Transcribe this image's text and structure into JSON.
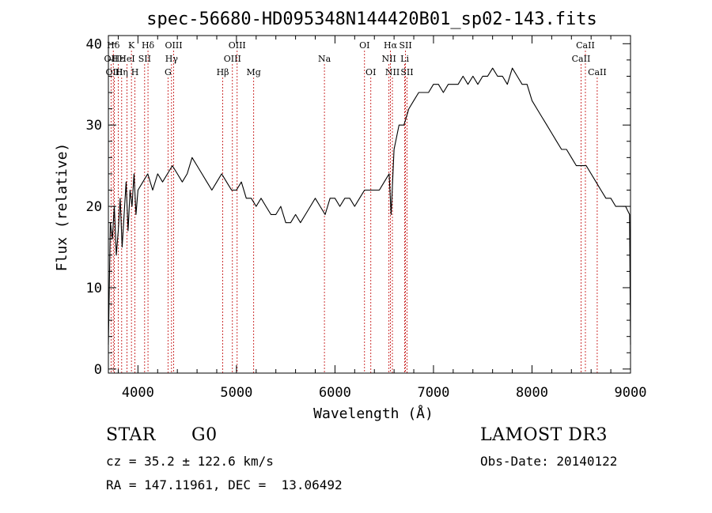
{
  "chart_data": {
    "type": "line",
    "title": "spec-56680-HD095348N144420B01_sp02-143.fits",
    "xlabel": "Wavelength (Å)",
    "ylabel": "Flux (relative)",
    "xlim": [
      3700,
      9000
    ],
    "ylim": [
      -0.5,
      41
    ],
    "xticks": [
      4000,
      5000,
      6000,
      7000,
      8000,
      9000
    ],
    "yticks": [
      0,
      10,
      20,
      30,
      40
    ],
    "grid": false,
    "line_color": "#000000",
    "marker_color": "#c00000",
    "series": [
      {
        "x": [
          3700,
          3720,
          3740,
          3760,
          3780,
          3800,
          3820,
          3840,
          3860,
          3880,
          3900,
          3920,
          3940,
          3960,
          3980,
          4000,
          4050,
          4100,
          4150,
          4200,
          4250,
          4300,
          4350,
          4400,
          4450,
          4500,
          4550,
          4600,
          4650,
          4700,
          4750,
          4800,
          4850,
          4900,
          4950,
          5000,
          5050,
          5100,
          5150,
          5200,
          5250,
          5300,
          5350,
          5400,
          5450,
          5500,
          5550,
          5600,
          5650,
          5700,
          5750,
          5800,
          5850,
          5900,
          5950,
          6000,
          6050,
          6100,
          6150,
          6200,
          6250,
          6300,
          6350,
          6400,
          6450,
          6500,
          6550,
          6570,
          6600,
          6650,
          6700,
          6750,
          6800,
          6850,
          6900,
          6950,
          7000,
          7050,
          7100,
          7150,
          7200,
          7250,
          7300,
          7350,
          7400,
          7450,
          7500,
          7550,
          7600,
          7650,
          7700,
          7750,
          7800,
          7850,
          7900,
          7950,
          8000,
          8050,
          8100,
          8150,
          8200,
          8250,
          8300,
          8350,
          8400,
          8450,
          8500,
          8550,
          8600,
          8650,
          8700,
          8750,
          8800,
          8850,
          8900,
          8950,
          8990,
          9000
        ],
        "y": [
          3,
          18,
          16,
          20,
          14,
          17,
          21,
          15,
          19,
          23,
          17,
          22,
          20,
          24,
          19,
          22,
          23,
          24,
          22,
          24,
          23,
          24,
          25,
          24,
          23,
          24,
          26,
          25,
          24,
          23,
          22,
          23,
          24,
          23,
          22,
          22,
          23,
          21,
          21,
          20,
          21,
          20,
          19,
          19,
          20,
          18,
          18,
          19,
          18,
          19,
          20,
          21,
          20,
          19,
          21,
          21,
          20,
          21,
          21,
          20,
          21,
          22,
          22,
          22,
          22,
          23,
          24,
          19,
          27,
          30,
          30,
          32,
          33,
          34,
          34,
          34,
          35,
          35,
          34,
          35,
          35,
          35,
          36,
          35,
          36,
          35,
          36,
          36,
          37,
          36,
          36,
          35,
          37,
          36,
          35,
          35,
          33,
          32,
          31,
          30,
          29,
          28,
          27,
          27,
          26,
          25,
          25,
          25,
          24,
          23,
          22,
          21,
          21,
          20,
          20,
          20,
          19,
          3
        ]
      }
    ],
    "lines": [
      {
        "label": "Hδ",
        "x": 3750,
        "row": 1
      },
      {
        "label": "OII",
        "x": 3727,
        "row": 2
      },
      {
        "label": "OIII",
        "x": 3760,
        "row": 3
      },
      {
        "label": "Hε",
        "x": 3800,
        "row": 2
      },
      {
        "label": "Hη",
        "x": 3835,
        "row": 3
      },
      {
        "label": "K",
        "x": 3934,
        "row": 1
      },
      {
        "label": "HeI",
        "x": 3889,
        "row": 2
      },
      {
        "label": "H",
        "x": 3969,
        "row": 3
      },
      {
        "label": "SII",
        "x": 4068,
        "row": 2
      },
      {
        "label": "Hδ",
        "x": 4102,
        "row": 1
      },
      {
        "label": "OIII",
        "x": 4363,
        "row": 1
      },
      {
        "label": "Hγ",
        "x": 4341,
        "row": 2
      },
      {
        "label": "G",
        "x": 4305,
        "row": 3
      },
      {
        "label": "Hβ",
        "x": 4861,
        "row": 3
      },
      {
        "label": "OIII",
        "x": 5007,
        "row": 1
      },
      {
        "label": "OIII",
        "x": 4959,
        "row": 2
      },
      {
        "label": "Mg",
        "x": 5175,
        "row": 3
      },
      {
        "label": "Na",
        "x": 5893,
        "row": 2
      },
      {
        "label": "OI",
        "x": 6300,
        "row": 1
      },
      {
        "label": "OI",
        "x": 6364,
        "row": 3
      },
      {
        "label": "Hα",
        "x": 6563,
        "row": 1
      },
      {
        "label": "SII",
        "x": 6716,
        "row": 1
      },
      {
        "label": "NII",
        "x": 6548,
        "row": 2
      },
      {
        "label": "Li",
        "x": 6708,
        "row": 2
      },
      {
        "label": "NII",
        "x": 6583,
        "row": 3
      },
      {
        "label": "SII",
        "x": 6731,
        "row": 3
      },
      {
        "label": "CaII",
        "x": 8542,
        "row": 1
      },
      {
        "label": "CaII",
        "x": 8498,
        "row": 2
      },
      {
        "label": "CaII",
        "x": 8662,
        "row": 3
      }
    ]
  },
  "info": {
    "object_class": "STAR",
    "subclass": "G0",
    "survey": "LAMOST DR3",
    "cz_line": "cz = 35.2 ± 122.6 km/s",
    "obs_date": "Obs-Date: 20140122",
    "radec_line": "RA = 147.11961, DEC =  13.06492"
  }
}
